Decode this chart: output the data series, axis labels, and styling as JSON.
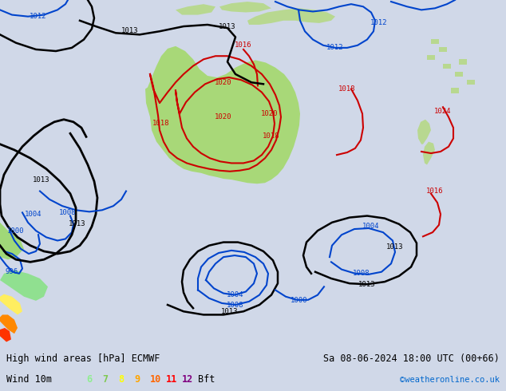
{
  "title_left": "High wind areas [hPa] ECMWF",
  "title_right": "Sa 08-06-2024 18:00 UTC (00+66)",
  "subtitle_left": "Wind 10m",
  "subtitle_right": "©weatheronline.co.uk",
  "legend_numbers": [
    "6",
    "7",
    "8",
    "9",
    "10",
    "11",
    "12"
  ],
  "legend_colors": [
    "#90ee90",
    "#7ec850",
    "#ffff00",
    "#ffa500",
    "#ff6600",
    "#ff0000",
    "#800080"
  ],
  "legend_suffix": "Bft",
  "background_color": "#d0d8e8",
  "land_color": "#c8e6a0",
  "australia_color": "#a8d878",
  "text_color": "#000000",
  "bottom_bar_color": "#e8e8e8",
  "pressure_label_color_black": "#000000",
  "pressure_label_color_red": "#cc0000",
  "pressure_label_color_blue": "#0000cc"
}
